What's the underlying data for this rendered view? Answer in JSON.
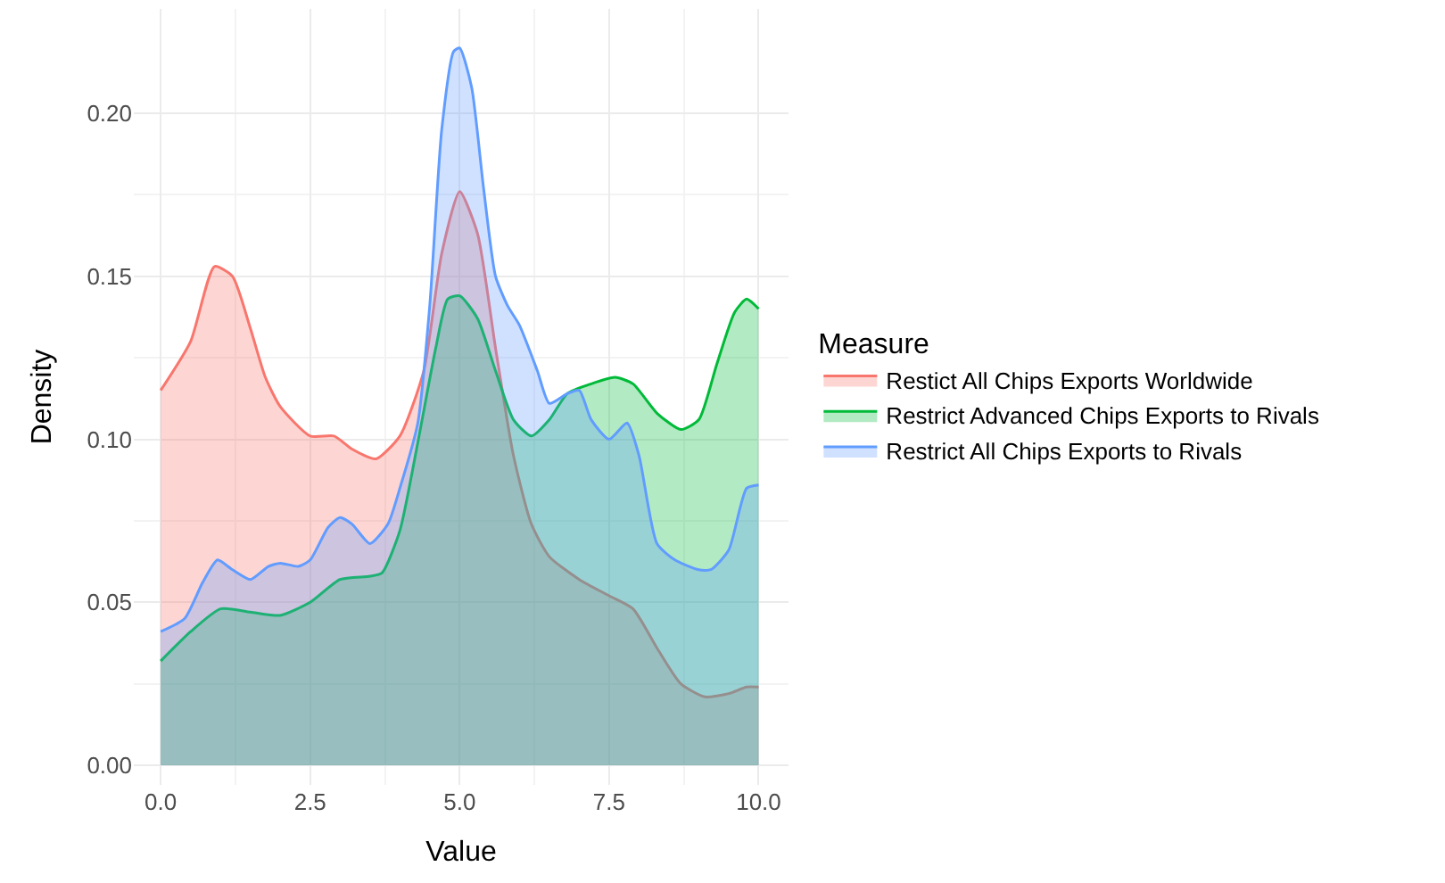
{
  "chart_data": {
    "type": "area",
    "xlabel": "Value",
    "ylabel": "Density",
    "legend_title": "Measure",
    "legend": "right",
    "grid": true,
    "xlim": [
      -0.45,
      10.5
    ],
    "ylim": [
      -0.006,
      0.232
    ],
    "xticks": [
      {
        "value": 0,
        "label": "0.0"
      },
      2.5,
      {
        "value": 5,
        "label": "5.0"
      },
      7.5,
      {
        "value": 10,
        "label": "10.0"
      }
    ],
    "yticks": [
      {
        "value": 0,
        "label": "0.00"
      },
      0.05,
      {
        "value": 0.1,
        "label": "0.10"
      },
      0.15,
      {
        "value": 0.2,
        "label": "0.20"
      }
    ],
    "series": [
      {
        "name": "Restict All Chips Exports Worldwide",
        "color": "#f8766d",
        "x": [
          0,
          0.5,
          0.9,
          1.2,
          1.5,
          1.75,
          2.0,
          2.5,
          2.9,
          3.2,
          3.6,
          4.0,
          4.4,
          4.7,
          5.0,
          5.3,
          5.6,
          5.9,
          6.2,
          6.5,
          7.0,
          7.5,
          7.9,
          8.3,
          8.7,
          9.1,
          9.5,
          9.8,
          10
        ],
        "values": [
          0.115,
          0.13,
          0.153,
          0.15,
          0.134,
          0.119,
          0.11,
          0.101,
          0.101,
          0.097,
          0.094,
          0.101,
          0.121,
          0.157,
          0.176,
          0.163,
          0.128,
          0.095,
          0.074,
          0.064,
          0.057,
          0.052,
          0.048,
          0.036,
          0.025,
          0.021,
          0.022,
          0.024,
          0.024
        ]
      },
      {
        "name": "Restrict Advanced Chips Exports to Rivals",
        "color": "#00ba38",
        "x": [
          0,
          0.5,
          1.0,
          1.5,
          2.0,
          2.5,
          3.0,
          3.5,
          3.7,
          4.0,
          4.3,
          4.6,
          4.8,
          5.0,
          5.3,
          5.6,
          5.9,
          6.2,
          6.5,
          6.8,
          7.2,
          7.6,
          7.9,
          8.3,
          8.7,
          9.0,
          9.3,
          9.6,
          9.8,
          10
        ],
        "values": [
          0.032,
          0.041,
          0.048,
          0.047,
          0.046,
          0.05,
          0.057,
          0.058,
          0.059,
          0.072,
          0.099,
          0.128,
          0.143,
          0.144,
          0.137,
          0.121,
          0.106,
          0.101,
          0.106,
          0.114,
          0.117,
          0.119,
          0.117,
          0.108,
          0.103,
          0.106,
          0.123,
          0.139,
          0.143,
          0.14
        ]
      },
      {
        "name": "Restrict All Chips Exports to Rivals",
        "color": "#619cff",
        "x": [
          0,
          0.4,
          0.7,
          0.95,
          1.2,
          1.5,
          1.8,
          2.0,
          2.3,
          2.5,
          2.8,
          3.0,
          3.2,
          3.5,
          3.8,
          4.0,
          4.3,
          4.5,
          4.7,
          4.9,
          5.0,
          5.2,
          5.4,
          5.6,
          5.8,
          6.0,
          6.3,
          6.5,
          6.8,
          7.0,
          7.2,
          7.5,
          7.8,
          8.0,
          8.3,
          8.6,
          9.0,
          9.2,
          9.5,
          9.8,
          10
        ],
        "values": [
          0.041,
          0.045,
          0.056,
          0.063,
          0.06,
          0.057,
          0.061,
          0.062,
          0.061,
          0.063,
          0.073,
          0.076,
          0.074,
          0.068,
          0.074,
          0.085,
          0.105,
          0.141,
          0.195,
          0.219,
          0.22,
          0.208,
          0.177,
          0.15,
          0.141,
          0.135,
          0.121,
          0.111,
          0.114,
          0.115,
          0.106,
          0.1,
          0.105,
          0.095,
          0.068,
          0.063,
          0.06,
          0.06,
          0.066,
          0.085,
          0.086
        ]
      }
    ]
  }
}
